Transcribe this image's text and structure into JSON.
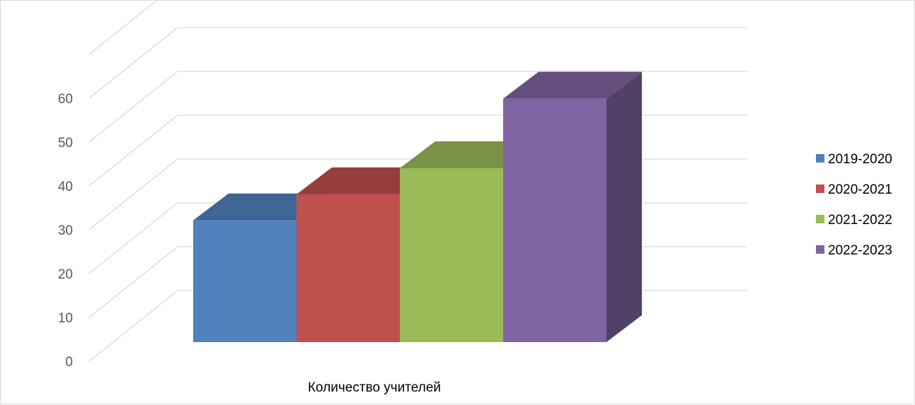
{
  "chart_data": {
    "type": "bar",
    "variant": "3d-clustered-column",
    "categories": [
      "Количество учителей"
    ],
    "series": [
      {
        "name": "2019-2020",
        "values": [
          28
        ],
        "color": "#4F81BD"
      },
      {
        "name": "2020-2021",
        "values": [
          34
        ],
        "color": "#C0504D"
      },
      {
        "name": "2021-2022",
        "values": [
          40
        ],
        "color": "#9BBB59"
      },
      {
        "name": "2022-2023",
        "values": [
          56
        ],
        "color": "#8064A2"
      }
    ],
    "yticks": [
      0,
      10,
      20,
      30,
      40,
      50,
      60
    ],
    "ylim": [
      0,
      70
    ],
    "grid": true,
    "legend_position": "right"
  }
}
